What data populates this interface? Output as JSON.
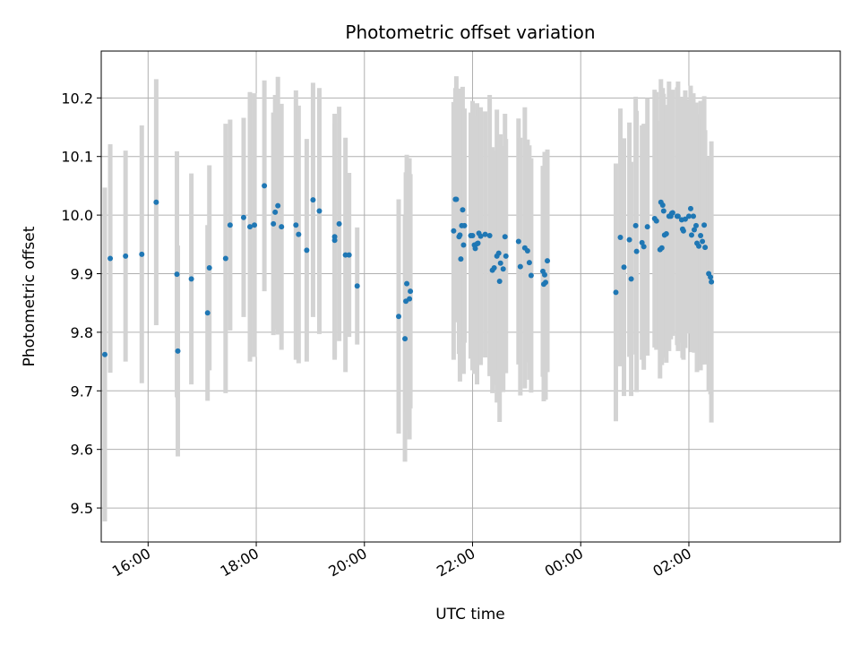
{
  "chart_data": {
    "type": "scatter",
    "title": "Photometric offset variation",
    "xlabel": "UTC time",
    "ylabel": "Photometric offset",
    "x_format": "HH:MM",
    "xlim": [
      "15:08",
      "04:48"
    ],
    "ylim": [
      9.442,
      10.28
    ],
    "x_ticks": [
      "16:00",
      "18:00",
      "20:00",
      "22:00",
      "00:00",
      "02:00"
    ],
    "y_ticks": [
      9.5,
      9.6,
      9.7,
      9.8,
      9.9,
      10.0,
      10.1,
      10.2
    ],
    "grid": true,
    "legend": "none",
    "colors": {
      "point": "#1f77b4",
      "errorbar": "#d3d3d3",
      "grid": "#b0b0b0"
    },
    "series": [
      {
        "points": [
          {
            "x": "15:12",
            "y": 9.762,
            "err": 0.285
          },
          {
            "x": "15:18",
            "y": 9.926,
            "err": 0.195
          },
          {
            "x": "15:35",
            "y": 9.93,
            "err": 0.18
          },
          {
            "x": "15:53",
            "y": 9.933,
            "err": 0.22
          },
          {
            "x": "16:09",
            "y": 10.022,
            "err": 0.21
          },
          {
            "x": "16:32",
            "y": 9.899,
            "err": 0.21
          },
          {
            "x": "16:33",
            "y": 9.768,
            "err": 0.18
          },
          {
            "x": "16:48",
            "y": 9.891,
            "err": 0.18
          },
          {
            "x": "17:06",
            "y": 9.833,
            "err": 0.15
          },
          {
            "x": "17:08",
            "y": 9.91,
            "err": 0.175
          },
          {
            "x": "17:26",
            "y": 9.926,
            "err": 0.23
          },
          {
            "x": "17:31",
            "y": 9.983,
            "err": 0.18
          },
          {
            "x": "17:46",
            "y": 9.996,
            "err": 0.17
          },
          {
            "x": "17:53",
            "y": 9.98,
            "err": 0.23
          },
          {
            "x": "17:58",
            "y": 9.983,
            "err": 0.225
          },
          {
            "x": "18:09",
            "y": 10.05,
            "err": 0.18
          },
          {
            "x": "18:19",
            "y": 9.985,
            "err": 0.19
          },
          {
            "x": "18:21",
            "y": 10.005,
            "err": 0.2
          },
          {
            "x": "18:24",
            "y": 10.016,
            "err": 0.22
          },
          {
            "x": "18:28",
            "y": 9.98,
            "err": 0.21
          },
          {
            "x": "18:44",
            "y": 9.983,
            "err": 0.23
          },
          {
            "x": "18:47",
            "y": 9.967,
            "err": 0.22
          },
          {
            "x": "18:56",
            "y": 9.94,
            "err": 0.19
          },
          {
            "x": "19:03",
            "y": 10.026,
            "err": 0.2
          },
          {
            "x": "19:10",
            "y": 10.007,
            "err": 0.21
          },
          {
            "x": "19:27",
            "y": 9.963,
            "err": 0.21
          },
          {
            "x": "19:27",
            "y": 9.957,
            "err": 0.2
          },
          {
            "x": "19:32",
            "y": 9.985,
            "err": 0.2
          },
          {
            "x": "19:39",
            "y": 9.932,
            "err": 0.2
          },
          {
            "x": "19:43",
            "y": 9.932,
            "err": 0.14
          },
          {
            "x": "19:52",
            "y": 9.879,
            "err": 0.1
          },
          {
            "x": "20:38",
            "y": 9.827,
            "err": 0.2
          },
          {
            "x": "20:45",
            "y": 9.789,
            "err": 0.21
          },
          {
            "x": "20:46",
            "y": 9.853,
            "err": 0.22
          },
          {
            "x": "20:47",
            "y": 9.883,
            "err": 0.22
          },
          {
            "x": "20:50",
            "y": 9.857,
            "err": 0.24
          },
          {
            "x": "20:51",
            "y": 9.87,
            "err": 0.2
          },
          {
            "x": "21:39",
            "y": 9.973,
            "err": 0.22
          },
          {
            "x": "21:41",
            "y": 10.027,
            "err": 0.19
          },
          {
            "x": "21:42",
            "y": 10.027,
            "err": 0.21
          },
          {
            "x": "21:45",
            "y": 9.963,
            "err": 0.2
          },
          {
            "x": "21:46",
            "y": 9.966,
            "err": 0.25
          },
          {
            "x": "21:47",
            "y": 9.925,
            "err": 0.18
          },
          {
            "x": "21:48",
            "y": 9.982,
            "err": 0.22
          },
          {
            "x": "21:49",
            "y": 10.009,
            "err": 0.21
          },
          {
            "x": "21:50",
            "y": 9.949,
            "err": 0.22
          },
          {
            "x": "21:51",
            "y": 9.982,
            "err": 0.2
          },
          {
            "x": "21:58",
            "y": 9.965,
            "err": 0.21
          },
          {
            "x": "22:00",
            "y": 9.965,
            "err": 0.23
          },
          {
            "x": "22:02",
            "y": 9.949,
            "err": 0.22
          },
          {
            "x": "22:03",
            "y": 9.943,
            "err": 0.2
          },
          {
            "x": "22:05",
            "y": 9.951,
            "err": 0.24
          },
          {
            "x": "22:06",
            "y": 9.952,
            "err": 0.2
          },
          {
            "x": "22:07",
            "y": 9.969,
            "err": 0.21
          },
          {
            "x": "22:09",
            "y": 9.964,
            "err": 0.22
          },
          {
            "x": "22:14",
            "y": 9.967,
            "err": 0.21
          },
          {
            "x": "22:19",
            "y": 9.965,
            "err": 0.24
          },
          {
            "x": "22:22",
            "y": 9.906,
            "err": 0.21
          },
          {
            "x": "22:24",
            "y": 9.91,
            "err": 0.2
          },
          {
            "x": "22:27",
            "y": 9.93,
            "err": 0.25
          },
          {
            "x": "22:29",
            "y": 9.935,
            "err": 0.2
          },
          {
            "x": "22:30",
            "y": 9.887,
            "err": 0.24
          },
          {
            "x": "22:31",
            "y": 9.918,
            "err": 0.22
          },
          {
            "x": "22:34",
            "y": 9.908,
            "err": 0.21
          },
          {
            "x": "22:36",
            "y": 9.963,
            "err": 0.21
          },
          {
            "x": "22:37",
            "y": 9.93,
            "err": 0.2
          },
          {
            "x": "22:51",
            "y": 9.955,
            "err": 0.21
          },
          {
            "x": "22:53",
            "y": 9.912,
            "err": 0.22
          },
          {
            "x": "22:58",
            "y": 9.944,
            "err": 0.24
          },
          {
            "x": "23:01",
            "y": 9.939,
            "err": 0.19
          },
          {
            "x": "23:03",
            "y": 9.919,
            "err": 0.2
          },
          {
            "x": "23:05",
            "y": 9.897,
            "err": 0.2
          },
          {
            "x": "23:18",
            "y": 9.904,
            "err": 0.18
          },
          {
            "x": "23:19",
            "y": 9.882,
            "err": 0.2
          },
          {
            "x": "23:20",
            "y": 9.898,
            "err": 0.21
          },
          {
            "x": "23:21",
            "y": 9.885,
            "err": 0.2
          },
          {
            "x": "23:23",
            "y": 9.922,
            "err": 0.19
          },
          {
            "x": "00:39",
            "y": 9.868,
            "err": 0.22
          },
          {
            "x": "00:44",
            "y": 9.962,
            "err": 0.22
          },
          {
            "x": "00:48",
            "y": 9.911,
            "err": 0.22
          },
          {
            "x": "00:54",
            "y": 9.958,
            "err": 0.2
          },
          {
            "x": "00:56",
            "y": 9.891,
            "err": 0.2
          },
          {
            "x": "01:01",
            "y": 9.982,
            "err": 0.22
          },
          {
            "x": "01:02",
            "y": 9.938,
            "err": 0.24
          },
          {
            "x": "01:08",
            "y": 9.953,
            "err": 0.2
          },
          {
            "x": "01:10",
            "y": 9.946,
            "err": 0.21
          },
          {
            "x": "01:14",
            "y": 9.98,
            "err": 0.22
          },
          {
            "x": "01:22",
            "y": 9.994,
            "err": 0.22
          },
          {
            "x": "01:24",
            "y": 9.99,
            "err": 0.22
          },
          {
            "x": "01:28",
            "y": 9.941,
            "err": 0.22
          },
          {
            "x": "01:29",
            "y": 10.022,
            "err": 0.21
          },
          {
            "x": "01:30",
            "y": 9.944,
            "err": 0.2
          },
          {
            "x": "01:31",
            "y": 10.017,
            "err": 0.2
          },
          {
            "x": "01:32",
            "y": 10.007,
            "err": 0.2
          },
          {
            "x": "01:33",
            "y": 9.966,
            "err": 0.21
          },
          {
            "x": "01:35",
            "y": 9.968,
            "err": 0.22
          },
          {
            "x": "01:38",
            "y": 9.998,
            "err": 0.23
          },
          {
            "x": "01:40",
            "y": 9.998,
            "err": 0.21
          },
          {
            "x": "01:41",
            "y": 10.003,
            "err": 0.2
          },
          {
            "x": "01:42",
            "y": 10.004,
            "err": 0.21
          },
          {
            "x": "01:47",
            "y": 9.998,
            "err": 0.22
          },
          {
            "x": "01:48",
            "y": 9.998,
            "err": 0.23
          },
          {
            "x": "01:52",
            "y": 9.992,
            "err": 0.21
          },
          {
            "x": "01:53",
            "y": 9.976,
            "err": 0.22
          },
          {
            "x": "01:54",
            "y": 9.973,
            "err": 0.22
          },
          {
            "x": "01:56",
            "y": 9.993,
            "err": 0.22
          },
          {
            "x": "02:00",
            "y": 9.998,
            "err": 0.2
          },
          {
            "x": "02:02",
            "y": 10.011,
            "err": 0.21
          },
          {
            "x": "02:03",
            "y": 9.966,
            "err": 0.2
          },
          {
            "x": "02:05",
            "y": 9.998,
            "err": 0.21
          },
          {
            "x": "02:06",
            "y": 9.975,
            "err": 0.21
          },
          {
            "x": "02:08",
            "y": 9.982,
            "err": 0.21
          },
          {
            "x": "02:09",
            "y": 9.952,
            "err": 0.22
          },
          {
            "x": "02:11",
            "y": 9.947,
            "err": 0.21
          },
          {
            "x": "02:13",
            "y": 9.965,
            "err": 0.23
          },
          {
            "x": "02:15",
            "y": 9.955,
            "err": 0.21
          },
          {
            "x": "02:17",
            "y": 9.983,
            "err": 0.22
          },
          {
            "x": "02:18",
            "y": 9.945,
            "err": 0.2
          },
          {
            "x": "02:22",
            "y": 9.9,
            "err": 0.2
          },
          {
            "x": "02:24",
            "y": 9.894,
            "err": 0.2
          },
          {
            "x": "02:25",
            "y": 9.886,
            "err": 0.24
          }
        ]
      }
    ]
  }
}
